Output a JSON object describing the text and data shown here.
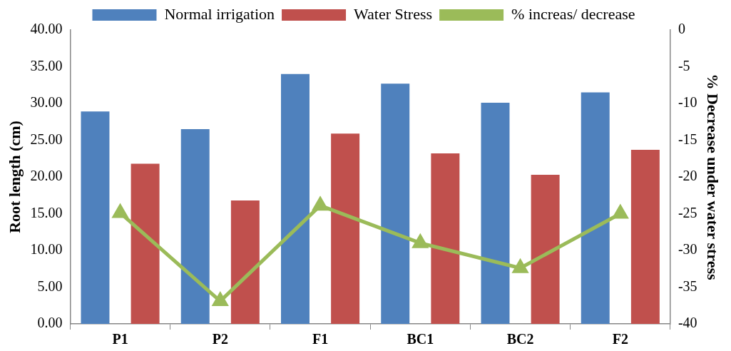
{
  "chart_data": {
    "type": "bar",
    "categories": [
      "P1",
      "P2",
      "F1",
      "BC1",
      "BC2",
      "F2"
    ],
    "ylabel": "Root length (cm)",
    "y2label": "% Decrease under water stress",
    "series": [
      {
        "name": "Normal irrigation",
        "color": "#4f81bd",
        "values": [
          28.9,
          26.5,
          34.0,
          32.7,
          30.1,
          31.5
        ]
      },
      {
        "name": "Water Stress",
        "color": "#c0504d",
        "values": [
          21.8,
          16.8,
          25.9,
          23.2,
          20.3,
          23.7
        ]
      },
      {
        "name": "% increas/ decrease",
        "type": "line",
        "axis": "y2",
        "color": "#9bbb59",
        "marker": "triangle",
        "values": [
          -24.9,
          -36.9,
          -23.9,
          -29.0,
          -32.4,
          -25.0
        ]
      }
    ],
    "ylim": [
      0,
      40
    ],
    "yticks": [
      {
        "value": 0,
        "label": "0.00"
      },
      {
        "value": 5,
        "label": "5.00"
      },
      {
        "value": 10,
        "label": "10.00"
      },
      {
        "value": 15,
        "label": "15.00"
      },
      {
        "value": 20,
        "label": "20.00"
      },
      {
        "value": 25,
        "label": "25.00"
      },
      {
        "value": 30,
        "label": "30.00"
      },
      {
        "value": 35,
        "label": "35.00"
      },
      {
        "value": 40,
        "label": "40.00"
      }
    ],
    "y2lim": [
      -40,
      0
    ],
    "y2ticks": [
      -40,
      -35,
      -30,
      -25,
      -20,
      -15,
      -10,
      -5,
      0
    ],
    "legend": "top",
    "grid": false
  }
}
